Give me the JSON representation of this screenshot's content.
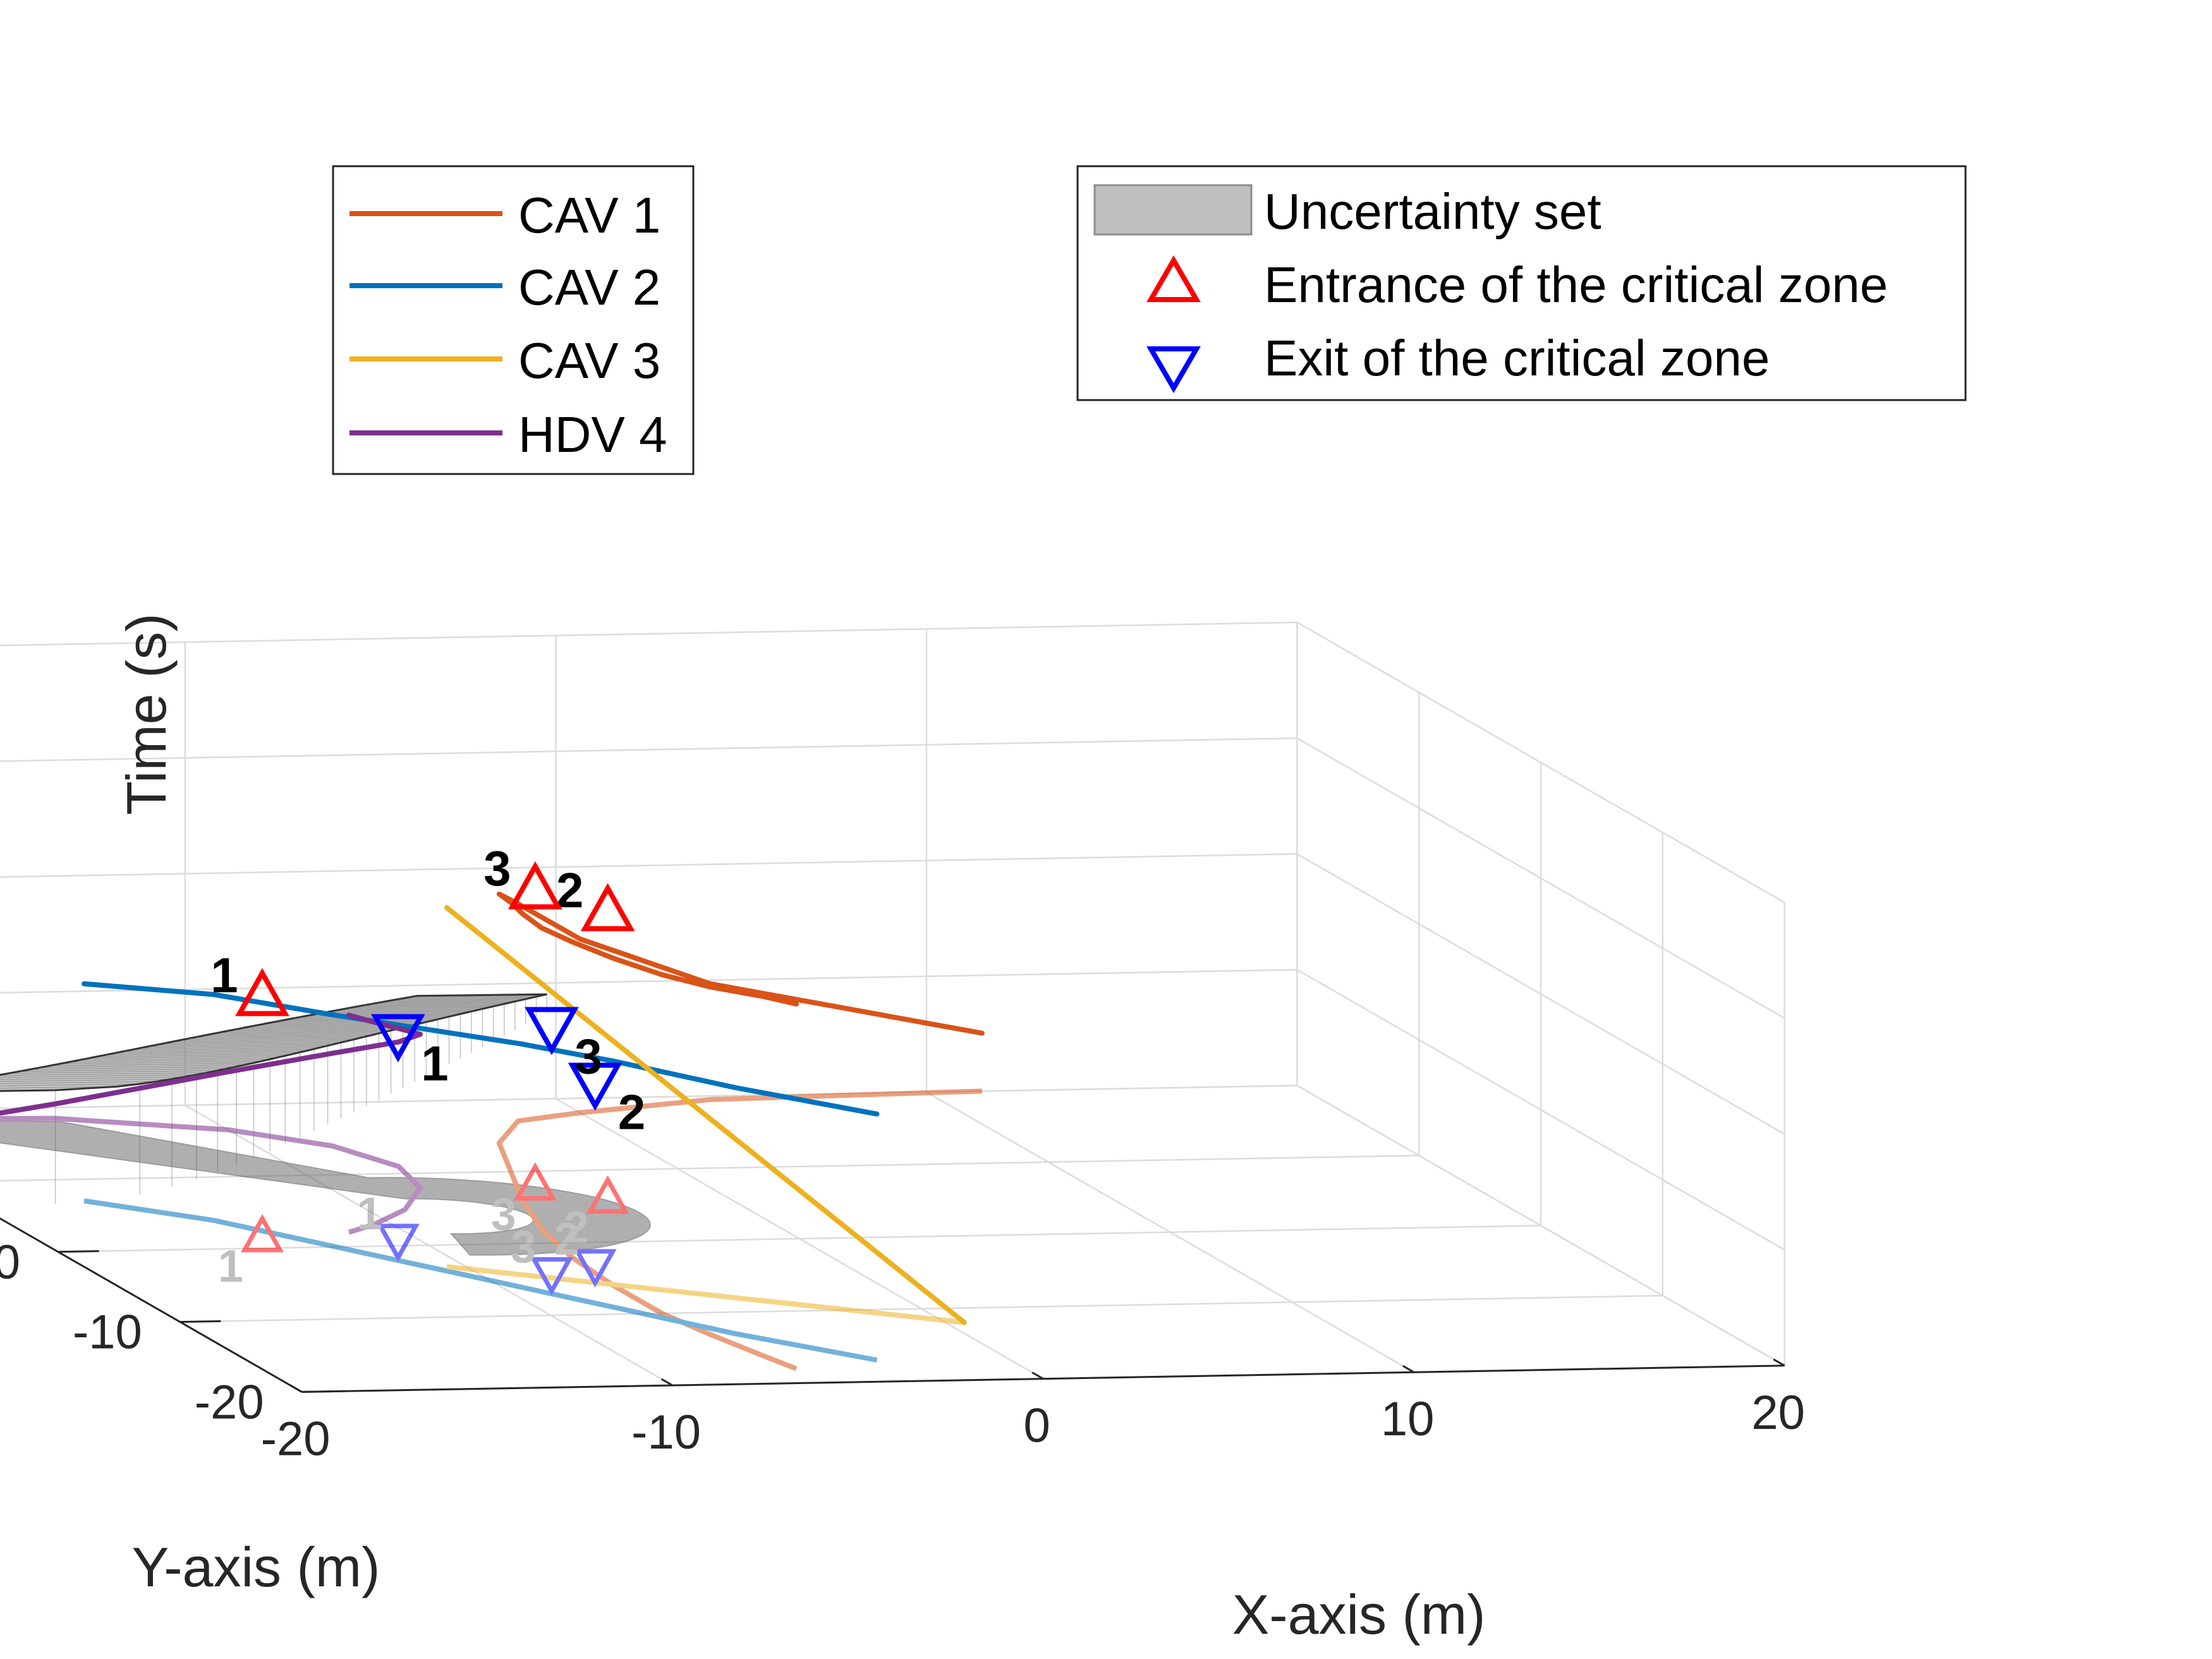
{
  "chart_data": {
    "type": "line3d",
    "title": "",
    "xlabel": "X-axis (m)",
    "ylabel": "Y-axis (m)",
    "zlabel": "Time (s)",
    "xlim": [
      -20,
      20
    ],
    "ylim": [
      -20,
      20
    ],
    "zlim": [
      4,
      20
    ],
    "xticks": [
      "-20",
      "-10",
      "0",
      "10",
      "20"
    ],
    "yticks": [
      "-20",
      "-10",
      "0",
      "10",
      "20"
    ],
    "zticks": [
      "4",
      "8",
      "12",
      "16",
      "20"
    ],
    "grid": true,
    "series": [
      {
        "name": "CAV 1",
        "color": "#D95319",
        "x": [
          11.5,
          4,
          0,
          -2,
          -3.5,
          -4.5,
          -5.5,
          -6.3,
          -6.8,
          -7.0,
          -7.0,
          -6.7,
          -6.3,
          -6.0
        ],
        "y": [
          20,
          19.5,
          18,
          17,
          14,
          10,
          6,
          2,
          -2,
          -6,
          -10,
          -13,
          -16,
          -18
        ],
        "t": [
          6,
          8,
          10,
          11.5,
          12.6,
          13.3,
          13.9,
          14.4,
          14.9,
          15.3,
          15.7,
          16.0,
          16.4,
          16.6
        ]
      },
      {
        "name": "CAV 2",
        "color": "#0072BD",
        "x": [
          -17,
          -14.5,
          -12.5,
          -11,
          -9.5,
          -8,
          -6,
          -3.5
        ],
        "y": [
          7,
          4,
          0,
          -3,
          -6,
          -9,
          -13,
          -17
        ],
        "t": [
          11.5,
          11.8,
          12.0,
          12.2,
          12.4,
          12.5,
          12.5,
          12.5
        ]
      },
      {
        "name": "CAV 3",
        "color": "#EDB120",
        "x": [
          -10.5,
          0.5
        ],
        "y": [
          -3,
          -12
        ],
        "t": [
          16.4,
          4.0
        ]
      },
      {
        "name": "HDV 4",
        "color": "#7E2F8E",
        "x": [
          -20,
          -14,
          -10,
          -8,
          -7.2,
          -7.6,
          -9,
          -10.5,
          -11.5
        ],
        "y": [
          19,
          18.5,
          16.5,
          14,
          11,
          8,
          5,
          3,
          2
        ],
        "t": [
          3.2,
          4.5,
          6,
          7.2,
          8.3,
          9.3,
          10.2,
          11.0,
          11.5
        ]
      }
    ],
    "entrance_markers": [
      {
        "label": "1",
        "vehicle": "CAV 2",
        "x": -14,
        "y": 1.5,
        "t": 12.3
      },
      {
        "label": "2",
        "vehicle": "CAV 1",
        "x": -3.2,
        "y": 6,
        "t": 13.9
      },
      {
        "label": "3",
        "vehicle": "CAV 1",
        "x": -4.5,
        "y": 8,
        "t": 14.2
      }
    ],
    "exit_markers": [
      {
        "label": "1",
        "vehicle": "HDV 4",
        "x": -10.5,
        "y": 1,
        "t": 11.1
      },
      {
        "label": "2",
        "vehicle": "CAV 3",
        "x": -6.5,
        "y": -3,
        "t": 10.3
      },
      {
        "label": "3",
        "vehicle": "CAV 2",
        "x": -8,
        "y": -4,
        "t": 12.5
      }
    ],
    "uncertainty_set": {
      "label": "Uncertainty set",
      "t_range": [
        5,
        12
      ],
      "color": "#808080"
    },
    "legend_vehicles": [
      "CAV 1",
      "CAV 2",
      "CAV 3",
      "HDV 4"
    ],
    "legend_markers": {
      "uncertainty": "Uncertainty set",
      "entrance": "Entrance of the critical zone",
      "exit": "Exit of the critical zone"
    },
    "legend_placement": [
      "top-left",
      "top-right"
    ]
  }
}
